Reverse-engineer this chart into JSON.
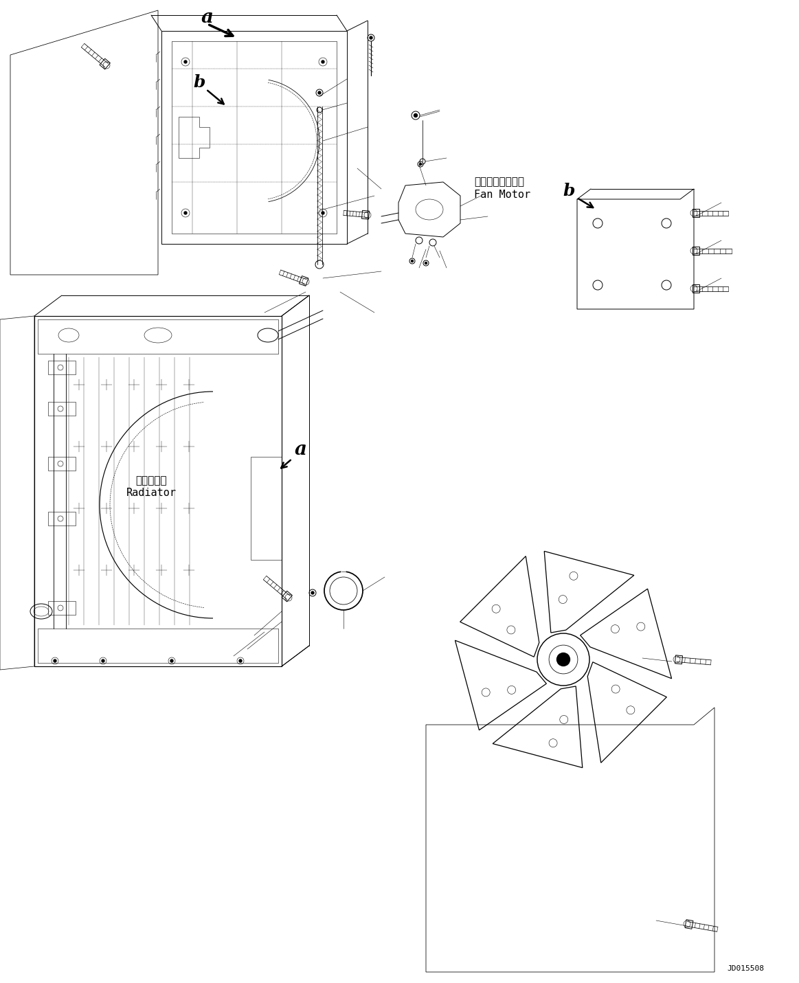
{
  "background_color": "#ffffff",
  "figure_width": 11.63,
  "figure_height": 14.31,
  "dpi": 100,
  "part_code": "JD015508",
  "labels": {
    "label_a_top": "a",
    "label_b_top": "b",
    "label_a_bottom": "a",
    "label_b_bottom": "b",
    "fan_motor_jp": "インファンモータ",
    "fan_motor_en": "Fan Motor",
    "radiator_jp": "ラジエータ",
    "radiator_en": "Radiator"
  },
  "line_color": "#000000",
  "lw": 0.7,
  "tlw": 0.4,
  "font_size_part_code": 8
}
